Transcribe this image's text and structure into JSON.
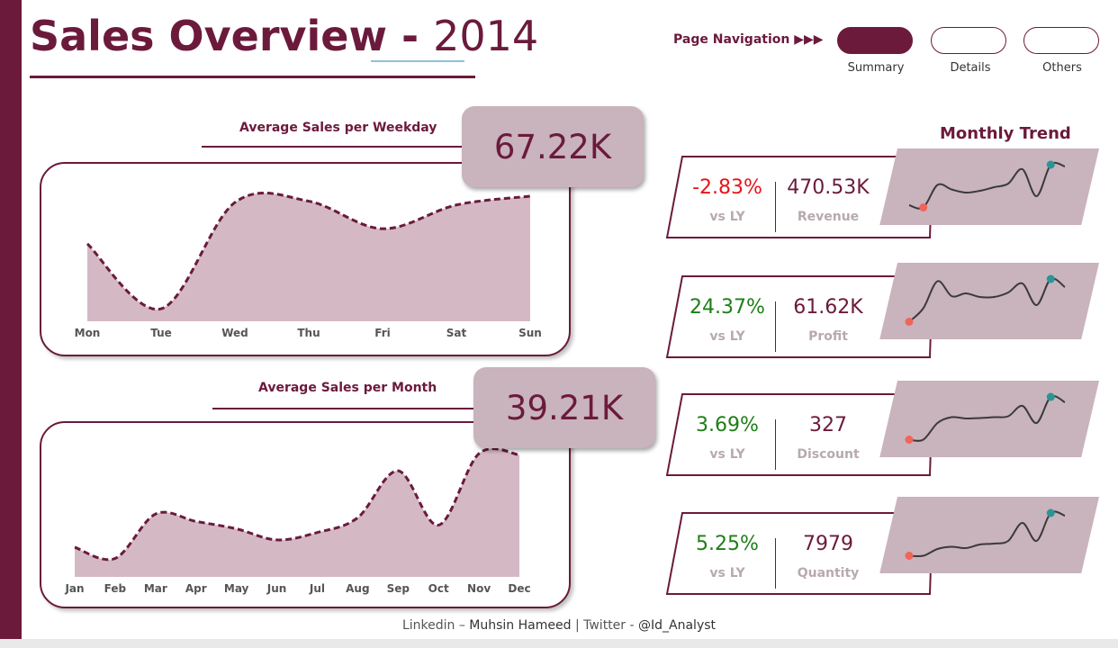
{
  "header": {
    "title": "Sales Overview -",
    "year": "2014"
  },
  "navigation": {
    "label": "Page Navigation ▶▶▶",
    "buttons": [
      {
        "caption": "Summary",
        "active": true
      },
      {
        "caption": "Details",
        "active": false
      },
      {
        "caption": "Others",
        "active": false
      }
    ]
  },
  "weekday_chart": {
    "title": "Average Sales per Weekday",
    "kpi": "67.22K"
  },
  "month_chart": {
    "title": "Average Sales per Month",
    "kpi": "39.21K"
  },
  "chart_data": [
    {
      "type": "area",
      "title": "Average Sales per Weekday",
      "categories": [
        "Mon",
        "Tue",
        "Wed",
        "Thu",
        "Fri",
        "Sat",
        "Sun"
      ],
      "values": [
        0.62,
        0.1,
        0.95,
        0.96,
        0.74,
        0.93,
        1.0
      ]
    },
    {
      "type": "area",
      "title": "Average Sales per Month",
      "categories": [
        "Jan",
        "Feb",
        "Mar",
        "Apr",
        "May",
        "Jun",
        "Jul",
        "Aug",
        "Sep",
        "Oct",
        "Nov",
        "Dec"
      ],
      "values": [
        0.24,
        0.15,
        0.51,
        0.45,
        0.39,
        0.3,
        0.36,
        0.48,
        0.86,
        0.42,
        1.0,
        0.99
      ]
    },
    {
      "type": "line",
      "title": "Revenue",
      "values": [
        0.1,
        0.05,
        0.55,
        0.45,
        0.38,
        0.42,
        0.5,
        0.58,
        0.9,
        0.3,
        1.0,
        0.96
      ]
    },
    {
      "type": "line",
      "title": "Profit",
      "values": [
        0.05,
        0.35,
        0.95,
        0.62,
        0.68,
        0.6,
        0.6,
        0.7,
        0.9,
        0.42,
        1.0,
        0.82
      ]
    },
    {
      "type": "line",
      "title": "Discount",
      "values": [
        0.05,
        0.05,
        0.42,
        0.55,
        0.52,
        0.53,
        0.55,
        0.57,
        0.8,
        0.42,
        1.0,
        0.88
      ]
    },
    {
      "type": "line",
      "title": "Quantity",
      "values": [
        0.05,
        0.05,
        0.2,
        0.25,
        0.22,
        0.3,
        0.32,
        0.38,
        0.78,
        0.38,
        1.0,
        0.94
      ]
    }
  ],
  "monthly_trend": {
    "title": "Monthly Trend",
    "cards": [
      {
        "pct": "-2.83%",
        "vs": "vs LY",
        "value": "470.53K",
        "metric": "Revenue",
        "pct_color": "#e8141b"
      },
      {
        "pct": "24.37%",
        "vs": "vs LY",
        "value": "61.62K",
        "metric": "Profit",
        "pct_color": "#1d7f16"
      },
      {
        "pct": "3.69%",
        "vs": "vs LY",
        "value": "327",
        "metric": "Discount",
        "pct_color": "#1d7f16"
      },
      {
        "pct": "5.25%",
        "vs": "vs LY",
        "value": "7979",
        "metric": "Quantity",
        "pct_color": "#1d7f16"
      }
    ]
  },
  "footer": {
    "linkedin_label": "Linkedin –",
    "name": "Muhsin Hameed",
    "separator": "|",
    "twitter_label": "Twitter -",
    "handle": "@Id_Analyst"
  },
  "colors": {
    "brand": "#6b1a3c",
    "area_fill": "#d4b9c5",
    "spark_bg": "#c9b3bd",
    "spark_line": "#3a3a3a",
    "spark_min": "#f0645a",
    "spark_max": "#2a9595"
  }
}
